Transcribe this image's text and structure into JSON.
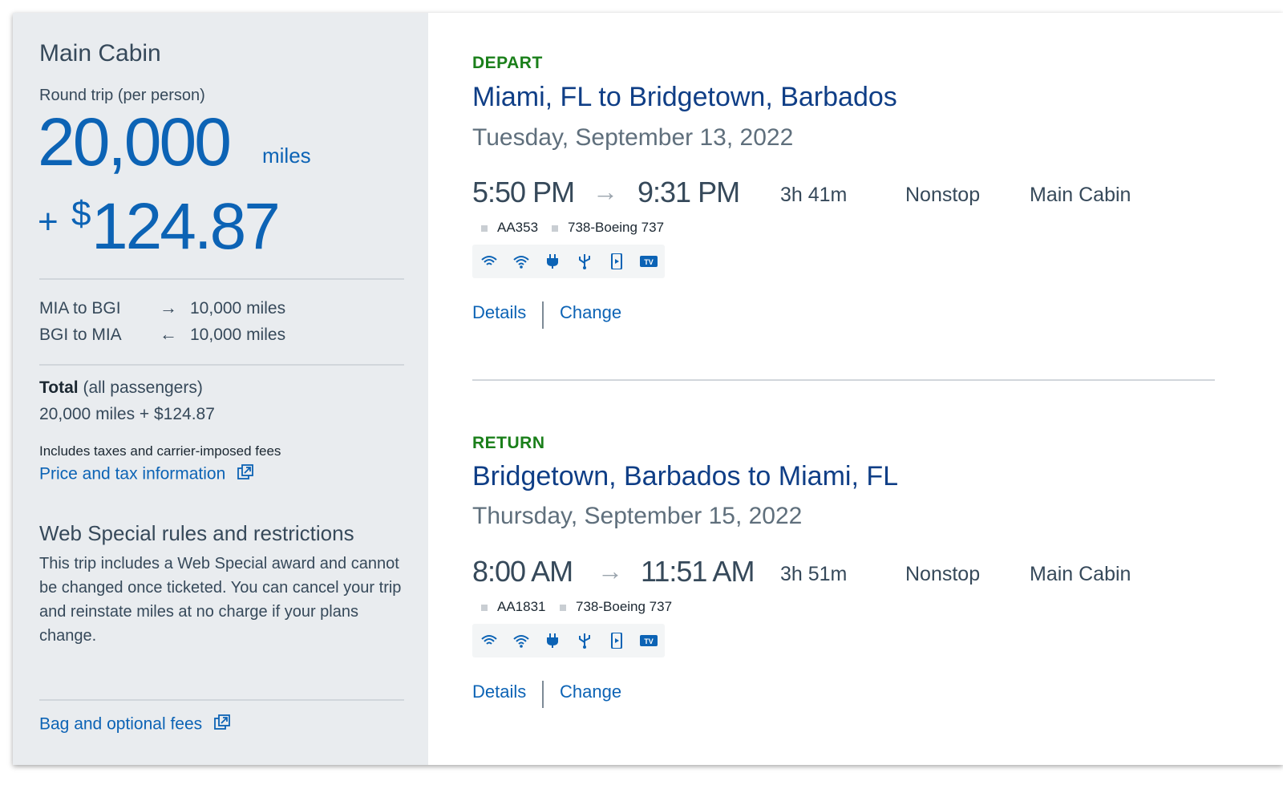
{
  "summary": {
    "cabin": "Main Cabin",
    "trip_type": "Round trip (per person)",
    "miles": "20,000",
    "miles_unit": "miles",
    "plus": "+",
    "currency_symbol": "$",
    "cash": "124.87",
    "segments": [
      {
        "label": "MIA to BGI",
        "arrow": "→",
        "miles": "10,000 miles"
      },
      {
        "label": "BGI to MIA",
        "arrow": "←",
        "miles": "10,000 miles"
      }
    ],
    "total_label": "Total",
    "total_suffix": "(all passengers)",
    "total_value": "20,000 miles + $124.87",
    "fees_note": "Includes taxes and carrier-imposed fees",
    "price_link": "Price and tax information",
    "rules_title": "Web Special rules and restrictions",
    "rules_text": "This trip includes a Web Special award and cannot be changed once ticketed. You can cancel your trip and reinstate miles at no charge if your plans change.",
    "bag_link": "Bag and optional fees"
  },
  "flights": [
    {
      "direction": "DEPART",
      "route": "Miami, FL to Bridgetown, Barbados",
      "date": "Tuesday, September 13, 2022",
      "depart_time": "5:50 PM",
      "arrow": "→",
      "arrive_time": "9:31 PM",
      "duration": "3h 41m",
      "stops": "Nonstop",
      "cabin": "Main Cabin",
      "flight_number": "AA353",
      "aircraft": "738-Boeing 737",
      "amenities": [
        "wifi-icon",
        "wifi-streaming-icon",
        "power-outlet-icon",
        "usb-icon",
        "device-entertainment-icon",
        "tv-icon"
      ],
      "details_label": "Details",
      "change_label": "Change"
    },
    {
      "direction": "RETURN",
      "route": "Bridgetown, Barbados to Miami, FL",
      "date": "Thursday, September 15, 2022",
      "depart_time": "8:00 AM",
      "arrow": "→",
      "arrive_time": "11:51 AM",
      "duration": "3h 51m",
      "stops": "Nonstop",
      "cabin": "Main Cabin",
      "flight_number": "AA1831",
      "aircraft": "738-Boeing 737",
      "amenities": [
        "wifi-icon",
        "wifi-streaming-icon",
        "power-outlet-icon",
        "usb-icon",
        "device-entertainment-icon",
        "tv-icon"
      ],
      "details_label": "Details",
      "change_label": "Change"
    }
  ],
  "colors": {
    "accent_blue": "#0c63b5",
    "route_navy": "#0f3e86",
    "direction_green": "#1a7f1a",
    "panel_gray": "#e9ecef",
    "tv_badge": "#0c63b5"
  }
}
